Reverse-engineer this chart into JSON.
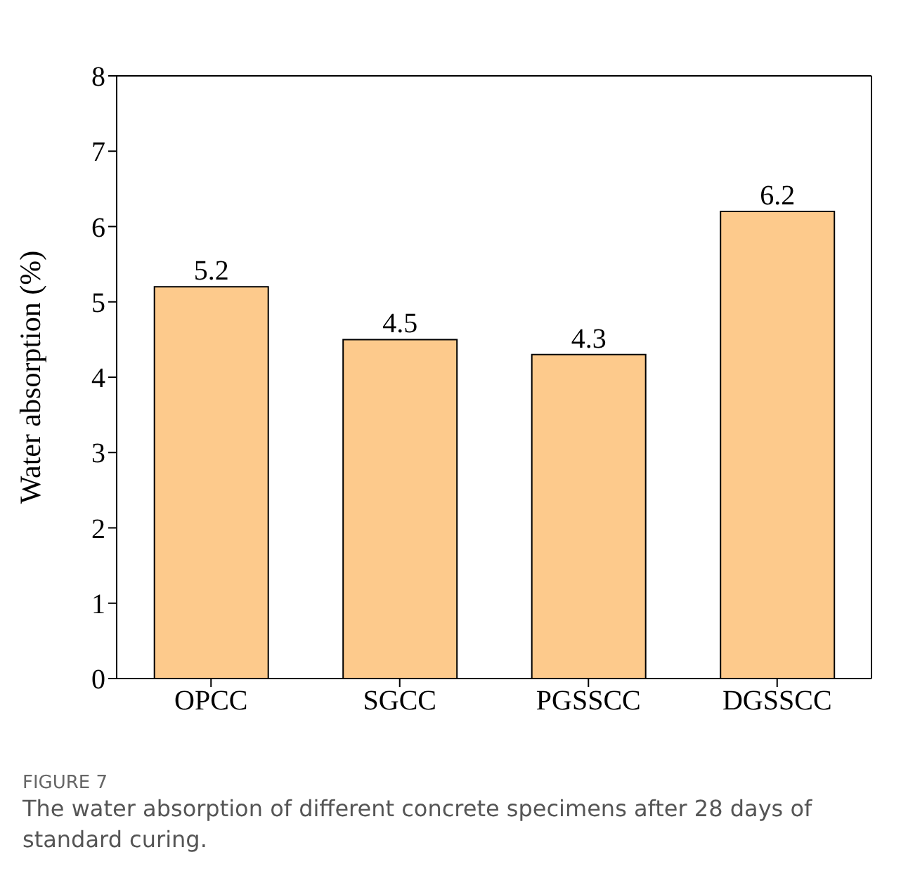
{
  "chart_data": {
    "type": "bar",
    "ylabel": "Water absorption (%)",
    "categories": [
      "OPCC",
      "SGCC",
      "PGSSCC",
      "DGSSCC"
    ],
    "values": [
      5.2,
      4.5,
      4.3,
      6.2
    ],
    "color": "#fdca8c",
    "ylim": [
      0,
      8
    ],
    "yticks": [
      0,
      1,
      2,
      3,
      4,
      5,
      6,
      7,
      8
    ],
    "data_labels": true,
    "grid": false,
    "annotations": [
      "FIGURE 7",
      "The water absorption of different concrete specimens after 28 days of standard curing."
    ]
  }
}
